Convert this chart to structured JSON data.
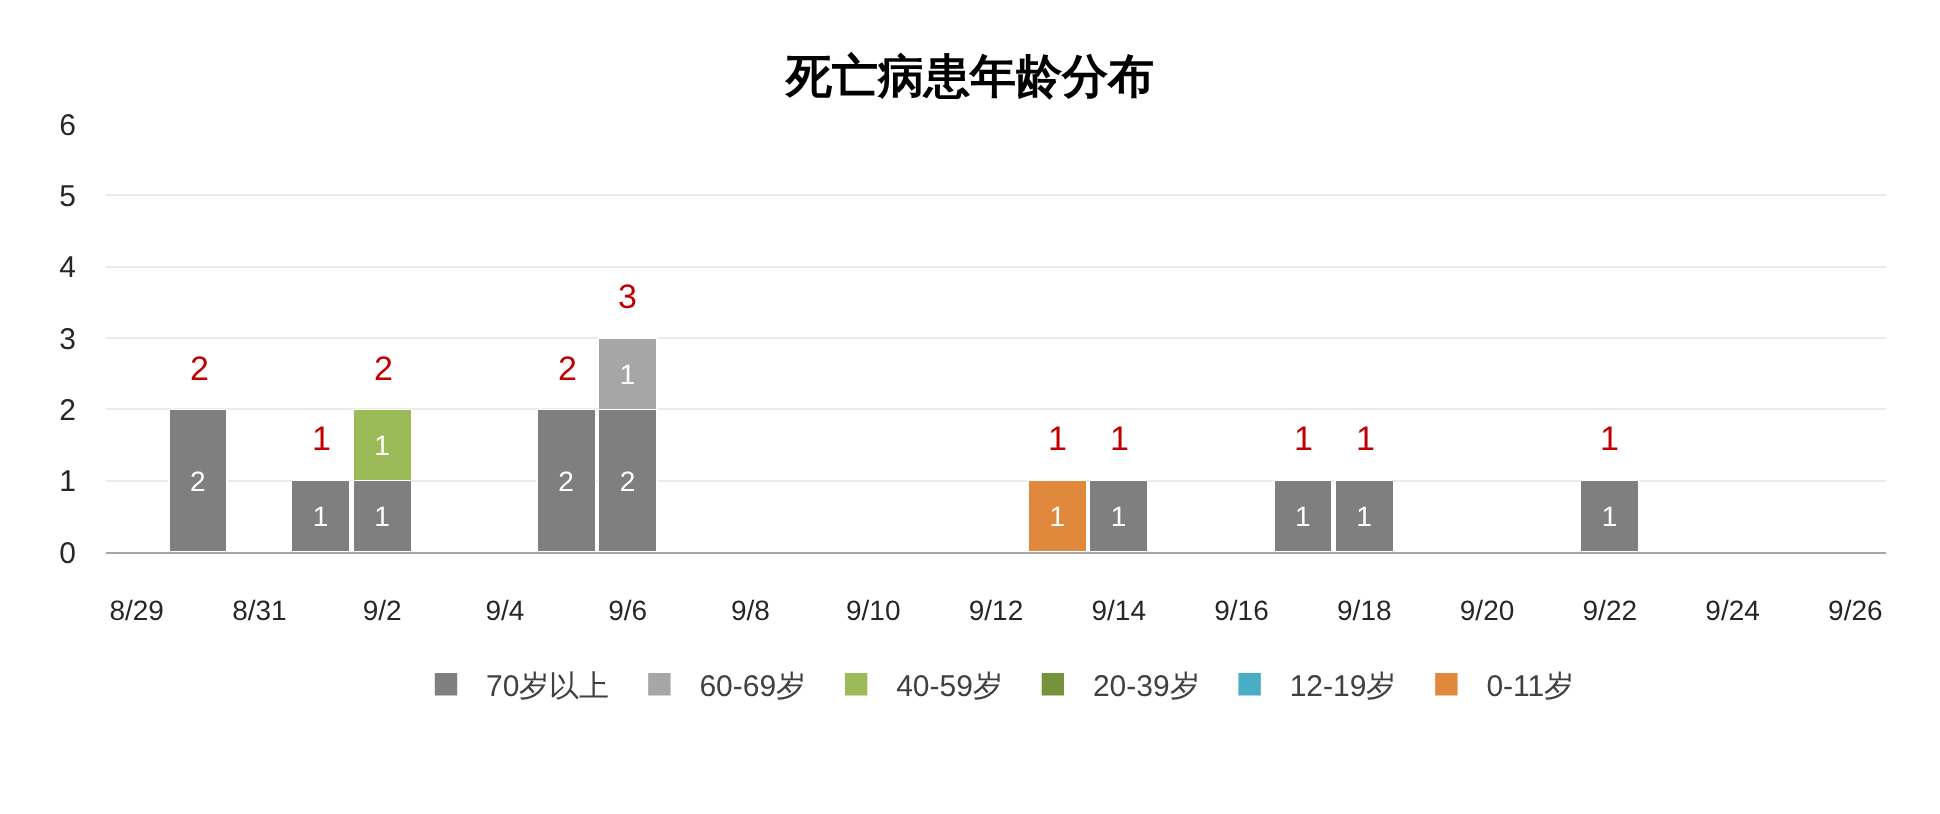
{
  "chart_data": {
    "type": "bar",
    "title": "死亡病患年龄分布",
    "categories": [
      "8/29",
      null,
      "8/31",
      null,
      "9/2",
      null,
      "9/4",
      null,
      "9/6",
      null,
      "9/8",
      null,
      "9/10",
      null,
      "9/12",
      null,
      "9/14",
      null,
      "9/16",
      null,
      "9/18",
      null,
      "9/20",
      null,
      "9/22",
      null,
      "9/24",
      null,
      "9/26"
    ],
    "series": [
      {
        "name": "70岁以上",
        "color": "#7f7f7f",
        "values": [
          null,
          2,
          null,
          1,
          1,
          null,
          null,
          2,
          2,
          null,
          null,
          null,
          null,
          null,
          null,
          null,
          1,
          null,
          null,
          1,
          1,
          null,
          null,
          null,
          1,
          null,
          null,
          null,
          null
        ]
      },
      {
        "name": "60-69岁",
        "color": "#a6a6a6",
        "values": [
          null,
          null,
          null,
          null,
          null,
          null,
          null,
          null,
          1,
          null,
          null,
          null,
          null,
          null,
          null,
          null,
          null,
          null,
          null,
          null,
          null,
          null,
          null,
          null,
          null,
          null,
          null,
          null,
          null
        ]
      },
      {
        "name": "40-59岁",
        "color": "#9bbb59",
        "values": [
          null,
          null,
          null,
          null,
          1,
          null,
          null,
          null,
          null,
          null,
          null,
          null,
          null,
          null,
          null,
          null,
          null,
          null,
          null,
          null,
          null,
          null,
          null,
          null,
          null,
          null,
          null,
          null,
          null
        ]
      },
      {
        "name": "20-39岁",
        "color": "#76923c",
        "values": [
          null,
          null,
          null,
          null,
          null,
          null,
          null,
          null,
          null,
          null,
          null,
          null,
          null,
          null,
          null,
          null,
          null,
          null,
          null,
          null,
          null,
          null,
          null,
          null,
          null,
          null,
          null,
          null,
          null
        ]
      },
      {
        "name": "12-19岁",
        "color": "#4bacc6",
        "values": [
          null,
          null,
          null,
          null,
          null,
          null,
          null,
          null,
          null,
          null,
          null,
          null,
          null,
          null,
          null,
          null,
          null,
          null,
          null,
          null,
          null,
          null,
          null,
          null,
          null,
          null,
          null,
          null,
          null
        ]
      },
      {
        "name": "0-11岁",
        "color": "#e0893c",
        "values": [
          null,
          null,
          null,
          null,
          null,
          null,
          null,
          null,
          null,
          null,
          null,
          null,
          null,
          null,
          null,
          1,
          null,
          null,
          null,
          null,
          null,
          null,
          null,
          null,
          null,
          null,
          null,
          null,
          null
        ]
      }
    ],
    "stacked": true,
    "data_labels": true,
    "totals": [
      null,
      "2",
      null,
      "1",
      "2",
      null,
      null,
      "2",
      "3",
      null,
      null,
      null,
      null,
      null,
      null,
      "1",
      "1",
      null,
      null,
      "1",
      "1",
      null,
      null,
      null,
      "1",
      null,
      null,
      null,
      null
    ],
    "ylim": [
      0,
      6
    ],
    "yticks": [
      0,
      1,
      2,
      3,
      4,
      5,
      6
    ],
    "grid": "y",
    "legend": "bottom"
  }
}
